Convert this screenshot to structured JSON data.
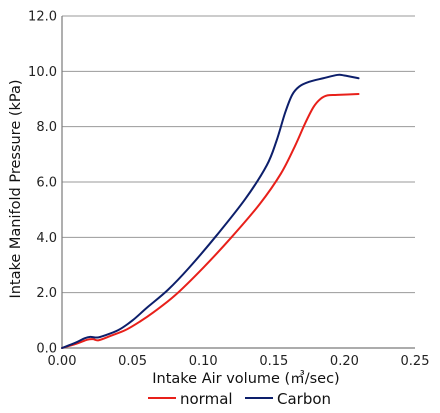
{
  "chart_data": {
    "type": "line",
    "xlabel": "Intake Air volume (㎥/sec)",
    "ylabel": "Intake Manifold Pressure (kPa)",
    "xlim": [
      0,
      0.25
    ],
    "ylim": [
      0,
      12
    ],
    "x_ticks": [
      "0.00",
      "0.05",
      "0.10",
      "0.15",
      "0.20",
      "0.25"
    ],
    "y_ticks": [
      "0.0",
      "2.0",
      "4.0",
      "6.0",
      "8.0",
      "10.0",
      "12.0"
    ],
    "grid": "horizontal",
    "legend": "bottom",
    "series": [
      {
        "name": "normal",
        "color": "#e8201a",
        "x": [
          0.0,
          0.01,
          0.018,
          0.022,
          0.026,
          0.035,
          0.045,
          0.055,
          0.065,
          0.08,
          0.1,
          0.12,
          0.14,
          0.155,
          0.165,
          0.172,
          0.178,
          0.183,
          0.188,
          0.195,
          0.21
        ],
        "y": [
          0.0,
          0.15,
          0.3,
          0.32,
          0.28,
          0.45,
          0.65,
          0.95,
          1.3,
          1.9,
          2.9,
          4.0,
          5.2,
          6.3,
          7.3,
          8.1,
          8.7,
          9.0,
          9.13,
          9.15,
          9.18
        ]
      },
      {
        "name": "Carbon",
        "color": "#0d1f6b",
        "x": [
          0.0,
          0.01,
          0.016,
          0.02,
          0.025,
          0.03,
          0.04,
          0.05,
          0.06,
          0.075,
          0.09,
          0.11,
          0.13,
          0.145,
          0.152,
          0.158,
          0.163,
          0.168,
          0.175,
          0.185,
          0.195,
          0.2,
          0.21
        ],
        "y": [
          0.0,
          0.2,
          0.35,
          0.4,
          0.38,
          0.45,
          0.65,
          1.0,
          1.45,
          2.1,
          2.9,
          4.1,
          5.4,
          6.6,
          7.5,
          8.5,
          9.15,
          9.45,
          9.62,
          9.75,
          9.87,
          9.85,
          9.75
        ]
      }
    ]
  }
}
